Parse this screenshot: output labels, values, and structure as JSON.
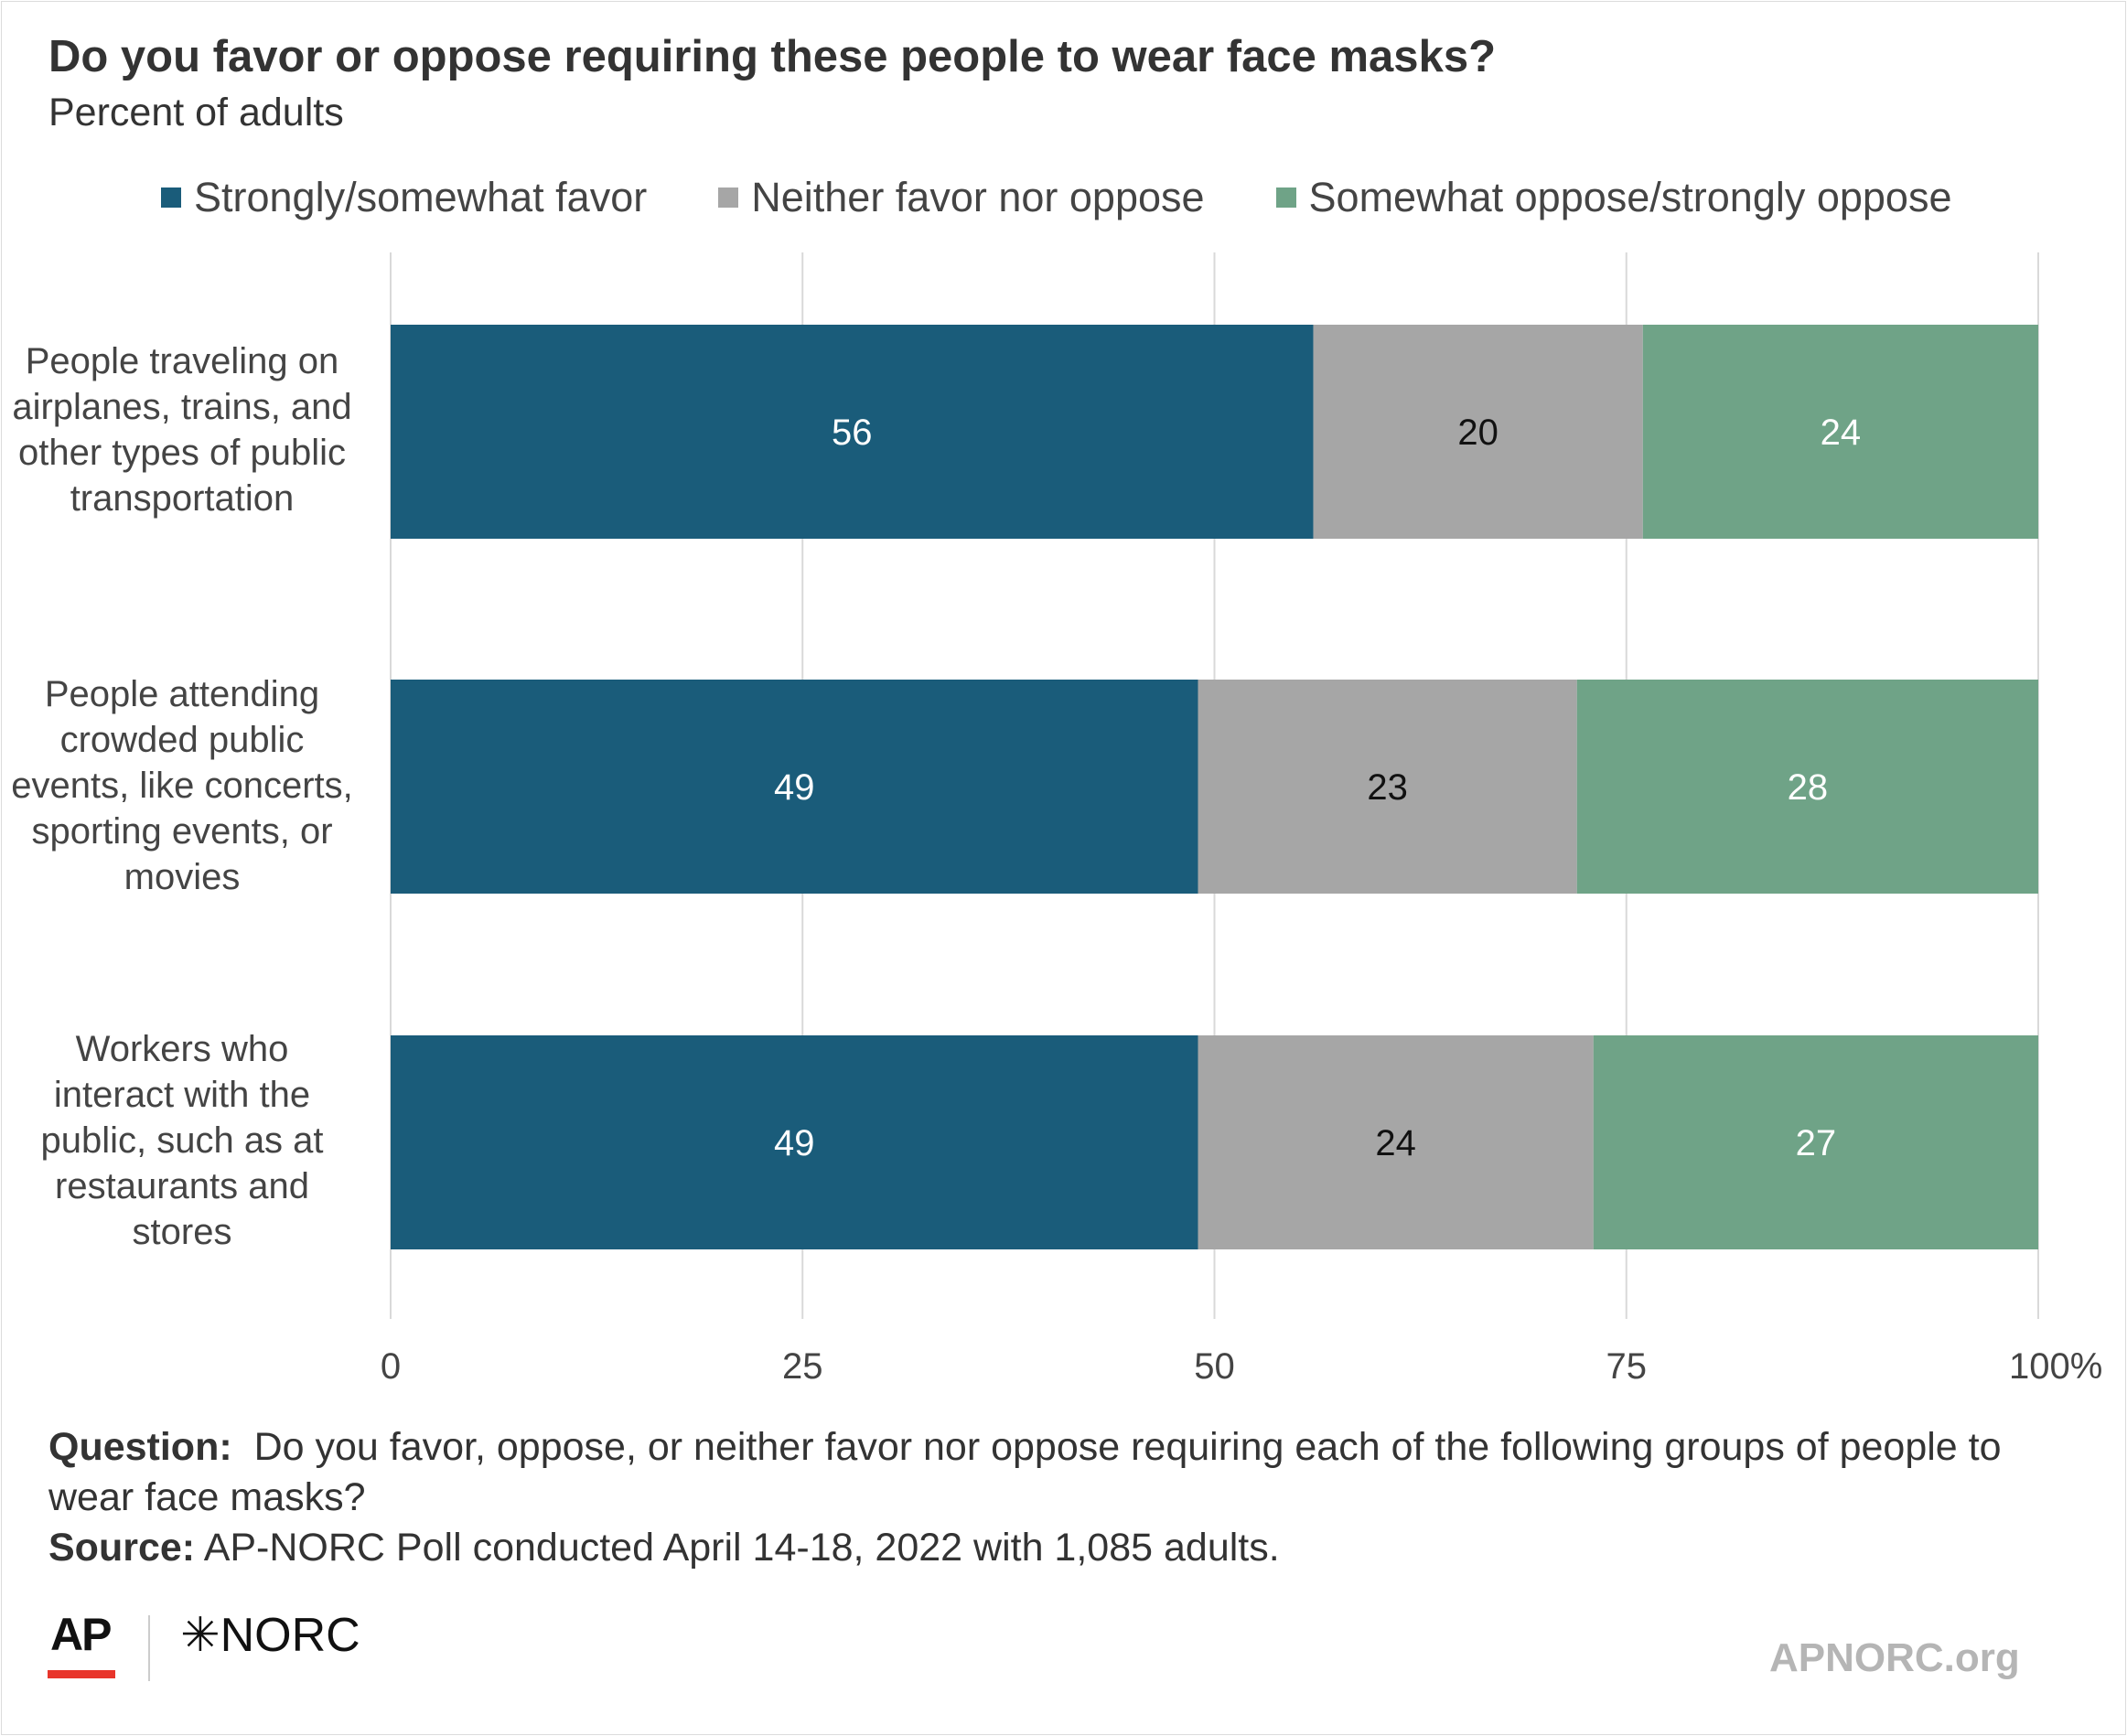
{
  "header": {
    "title": "Do you favor or oppose requiring these people to wear face masks?",
    "subtitle": "Percent of adults"
  },
  "chart_data": {
    "type": "bar",
    "orientation": "horizontal",
    "stacked": true,
    "title": "Do you favor or oppose requiring these people to wear face masks?",
    "subtitle": "Percent of adults",
    "categories": [
      "People traveling on airplanes, trains, and other types of public transportation",
      "People attending crowded public events, like concerts, sporting events, or movies",
      "Workers who interact with the public, such as at restaurants and stores"
    ],
    "category_lines": [
      [
        "People traveling on",
        "airplanes, trains, and",
        "other types of public",
        "transportation"
      ],
      [
        "People attending",
        "crowded public",
        "events, like concerts,",
        "sporting events, or",
        "movies"
      ],
      [
        "Workers who",
        "interact with the",
        "public, such as at",
        "restaurants and",
        "stores"
      ]
    ],
    "series": [
      {
        "name": "Strongly/somewhat favor",
        "color": "#1a5c7a",
        "label_color": "#ffffff",
        "values": [
          56,
          49,
          49
        ]
      },
      {
        "name": "Neither favor nor oppose",
        "color": "#a6a6a6",
        "label_color": "#111111",
        "values": [
          20,
          23,
          24
        ]
      },
      {
        "name": "Somewhat oppose/strongly oppose",
        "color": "#6fa387",
        "label_color": "#ffffff",
        "values": [
          24,
          28,
          27
        ]
      }
    ],
    "xlim": [
      0,
      100
    ],
    "ticks": [
      {
        "value": 0,
        "label": "0"
      },
      {
        "value": 25,
        "label": "25"
      },
      {
        "value": 50,
        "label": "50"
      },
      {
        "value": 75,
        "label": "75"
      },
      {
        "value": 100,
        "label": "100%"
      }
    ],
    "grid": true,
    "legend": "top"
  },
  "footer": {
    "question_label": "Question:",
    "question_text": "Do you favor, oppose, or neither favor nor oppose requiring each of the following groups of people to wear face masks?",
    "source_label": "Source:",
    "source_text": "AP-NORC Poll conducted April 14-18, 2022 with 1,085 adults.",
    "logo_ap": "AP",
    "logo_norc": "✳NORC",
    "site": "APNORC.org"
  },
  "colors": {
    "favor": "#1a5c7a",
    "neither": "#a6a6a6",
    "oppose": "#6fa387",
    "ap_red": "#e8352b"
  }
}
